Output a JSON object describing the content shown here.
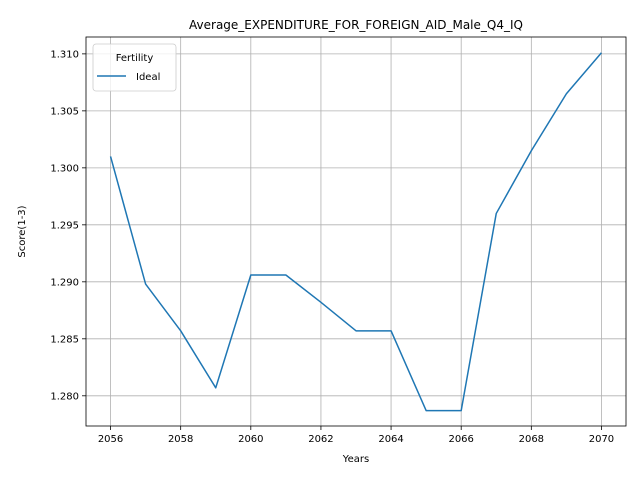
{
  "chart_data": {
    "type": "line",
    "title": "Average_EXPENDITURE_FOR_FOREIGN_AID_Male_Q4_IQ",
    "xlabel": "Years",
    "ylabel": "Score(1-3)",
    "xlim": [
      2055.3,
      2070.7
    ],
    "ylim": [
      1.27735,
      1.31148
    ],
    "xticks": [
      2056,
      2058,
      2060,
      2062,
      2064,
      2066,
      2068,
      2070
    ],
    "xtick_labels": [
      "2056",
      "2058",
      "2060",
      "2062",
      "2064",
      "2066",
      "2068",
      "2070"
    ],
    "yticks": [
      1.28,
      1.285,
      1.29,
      1.295,
      1.3,
      1.305,
      1.31
    ],
    "ytick_labels": [
      "1.280",
      "1.285",
      "1.290",
      "1.295",
      "1.300",
      "1.305",
      "1.310"
    ],
    "grid": true,
    "legend": {
      "title": "Fertility",
      "placement": "top-left"
    },
    "x": [
      2056,
      2057,
      2058,
      2059,
      2060,
      2061,
      2062,
      2063,
      2064,
      2065,
      2066,
      2067,
      2068,
      2069,
      2070
    ],
    "series": [
      {
        "name": "Ideal",
        "color": "#1f77b4",
        "values": [
          1.301,
          1.2898,
          1.2857,
          1.2807,
          1.2906,
          1.2906,
          1.2882,
          1.2857,
          1.2857,
          1.2787,
          1.2787,
          1.296,
          1.3015,
          1.3065,
          1.3101
        ]
      }
    ]
  }
}
